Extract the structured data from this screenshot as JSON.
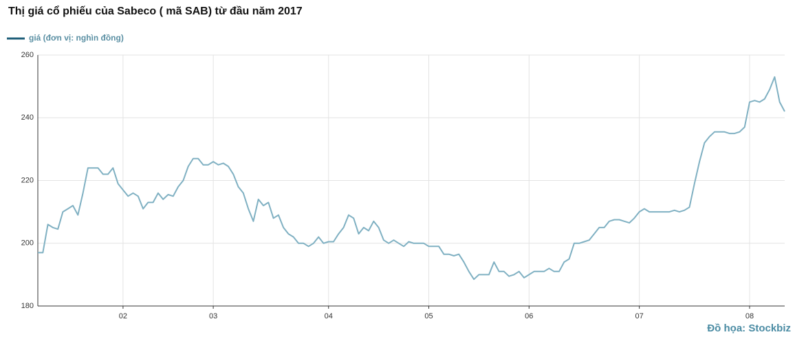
{
  "chart_data": {
    "type": "line",
    "title": "Thị giá cổ phiếu của Sabeco ( mã SAB) từ đầu năm 2017",
    "source": "Đồ họa: Stockbiz",
    "grid": true,
    "categories": [
      null,
      null,
      null,
      null,
      null,
      null,
      null,
      null,
      null,
      null,
      null,
      null,
      null,
      null,
      null,
      null,
      null,
      "02",
      null,
      null,
      null,
      null,
      null,
      null,
      null,
      null,
      null,
      null,
      null,
      null,
      null,
      null,
      null,
      null,
      null,
      "03",
      null,
      null,
      null,
      null,
      null,
      null,
      null,
      null,
      null,
      null,
      null,
      null,
      null,
      null,
      null,
      null,
      null,
      null,
      null,
      null,
      null,
      null,
      "04",
      null,
      null,
      null,
      null,
      null,
      null,
      null,
      null,
      null,
      null,
      null,
      null,
      null,
      null,
      null,
      null,
      null,
      null,
      null,
      "05",
      null,
      null,
      null,
      null,
      null,
      null,
      null,
      null,
      null,
      null,
      null,
      null,
      null,
      null,
      null,
      null,
      null,
      null,
      null,
      "06",
      null,
      null,
      null,
      null,
      null,
      null,
      null,
      null,
      null,
      null,
      null,
      null,
      null,
      null,
      null,
      null,
      null,
      null,
      null,
      null,
      null,
      "07",
      null,
      null,
      null,
      null,
      null,
      null,
      null,
      null,
      null,
      null,
      null,
      null,
      null,
      null,
      null,
      null,
      null,
      null,
      null,
      null,
      null,
      "08",
      null,
      null,
      null,
      null,
      null,
      null,
      null
    ],
    "series": [
      {
        "name": "giá (đơn vị: nghìn đồng)",
        "color": "#7fb0c2",
        "legend_color": "#1f5f7a",
        "values": [
          197,
          197,
          206,
          205,
          204.5,
          210,
          211,
          212,
          209,
          216,
          224,
          224,
          224,
          222,
          222,
          224,
          219,
          217,
          215,
          216,
          215,
          211,
          213,
          213,
          216,
          214,
          215.5,
          215,
          218,
          220,
          224.5,
          227,
          227,
          225,
          225,
          226,
          225,
          225.5,
          224.5,
          222,
          218,
          216,
          211,
          207,
          214,
          212,
          213,
          208,
          209,
          205,
          203,
          202,
          200,
          200,
          199,
          200,
          202,
          200,
          200.5,
          200.5,
          203,
          205,
          209,
          208,
          203,
          205,
          204,
          207,
          205,
          201,
          200,
          201,
          200,
          199,
          200.5,
          200,
          200,
          200,
          199,
          199,
          199,
          196.5,
          196.5,
          196,
          196.5,
          194,
          191,
          188.5,
          190,
          190,
          190,
          194,
          191,
          191,
          189.5,
          190,
          191,
          189,
          190,
          191,
          191,
          191,
          192,
          191,
          191,
          194,
          195,
          200,
          200,
          200.5,
          201,
          203,
          205,
          205,
          207,
          207.5,
          207.5,
          207,
          206.5,
          208,
          210,
          211,
          210,
          210,
          210,
          210,
          210,
          210.5,
          210,
          210.5,
          211.5,
          219,
          226,
          232,
          234,
          235.5,
          235.5,
          235.5,
          235,
          235,
          235.5,
          237,
          245,
          245.5,
          245,
          246,
          249,
          253,
          245,
          242
        ]
      }
    ],
    "ylim": [
      180,
      260
    ],
    "yticks": [
      180,
      200,
      220,
      240,
      260
    ]
  }
}
